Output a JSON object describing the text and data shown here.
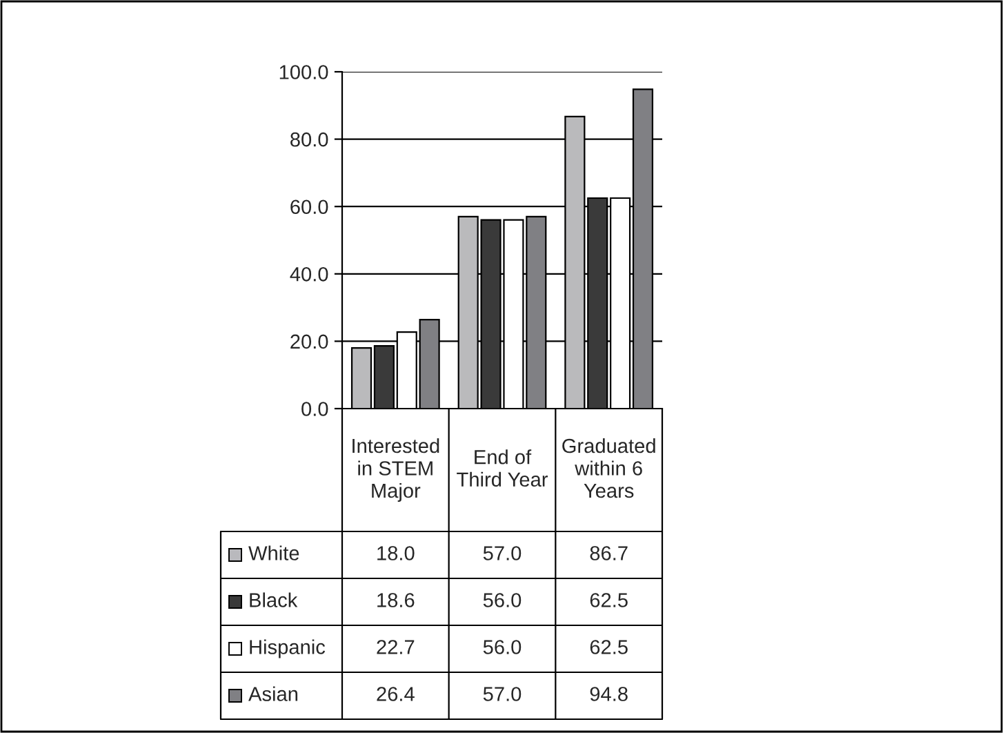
{
  "chart_data": {
    "type": "bar",
    "categories": [
      "Interested in STEM Major",
      "End of Third Year",
      "Graduated within 6 Years"
    ],
    "series": [
      {
        "name": "White",
        "color": "#b9b9bd",
        "values": [
          18.0,
          57.0,
          86.7
        ],
        "value_labels": [
          "18.0",
          "57.0",
          "86.7"
        ]
      },
      {
        "name": "Black",
        "color": "#3a3a3a",
        "values": [
          18.6,
          56.0,
          62.5
        ],
        "value_labels": [
          "18.6",
          "56.0",
          "62.5"
        ]
      },
      {
        "name": "Hispanic",
        "color": "#ffffff",
        "values": [
          22.7,
          56.0,
          62.5
        ],
        "value_labels": [
          "22.7",
          "56.0",
          "62.5"
        ]
      },
      {
        "name": "Asian",
        "color": "#808084",
        "values": [
          26.4,
          57.0,
          94.8
        ],
        "value_labels": [
          "26.4",
          "57.0",
          "94.8"
        ]
      }
    ],
    "ylim": [
      0,
      100
    ],
    "yticks": [
      {
        "value": 0,
        "label": "0.0"
      },
      {
        "value": 20,
        "label": "20.0"
      },
      {
        "value": 40,
        "label": "40.0"
      },
      {
        "value": 60,
        "label": "60.0"
      },
      {
        "value": 80,
        "label": "80.0"
      },
      {
        "value": 100,
        "label": "100.0"
      }
    ],
    "grid": "y",
    "legend": "left"
  }
}
